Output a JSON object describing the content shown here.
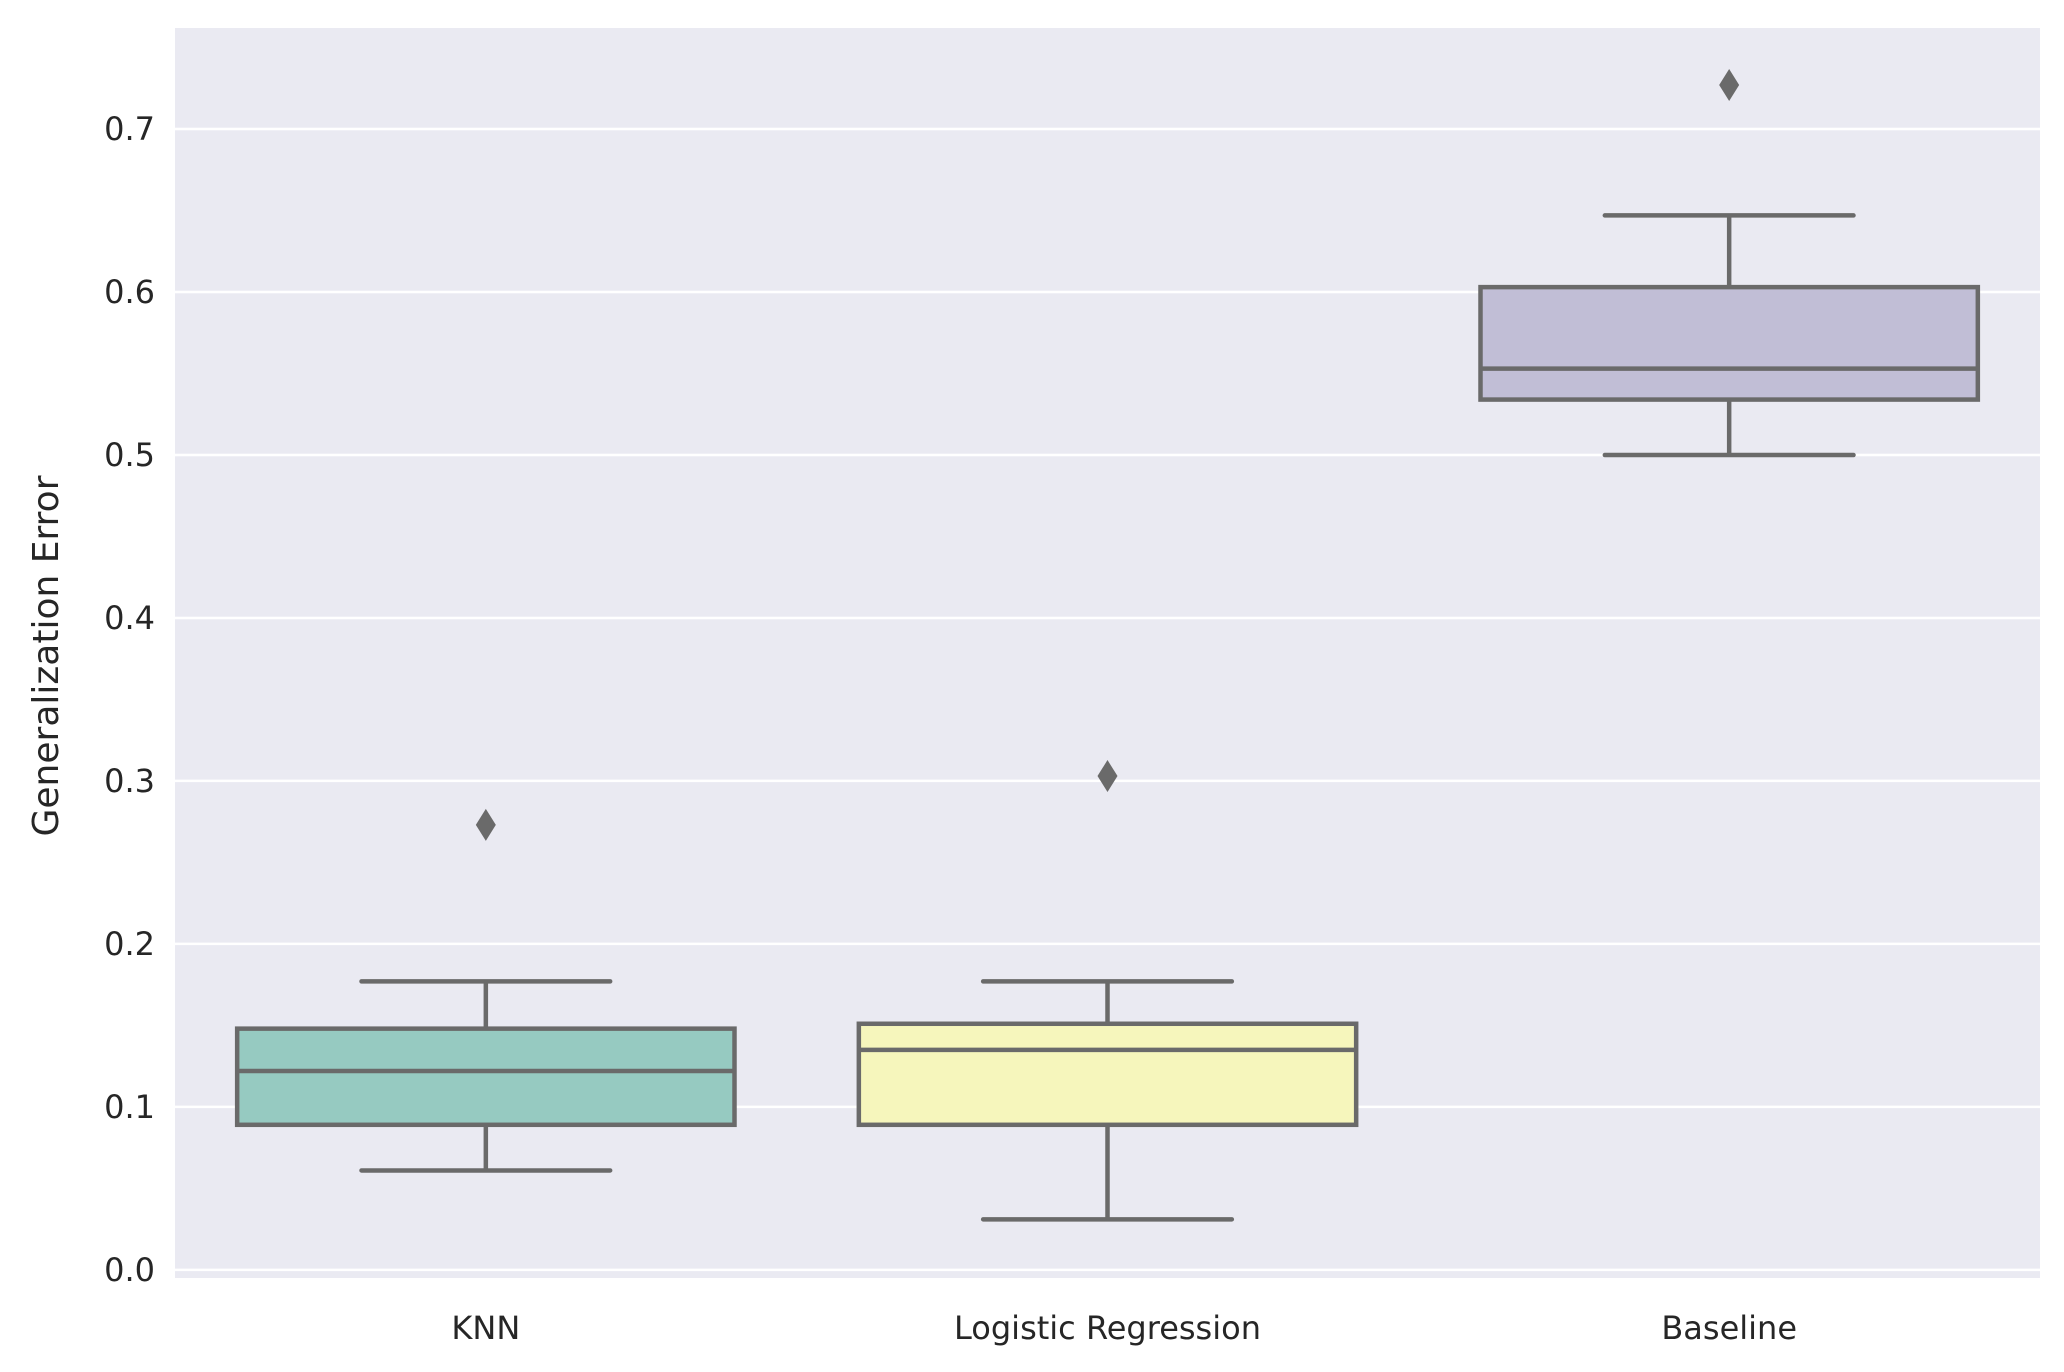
{
  "chart_data": {
    "type": "box",
    "title": "",
    "xlabel": "",
    "ylabel": "Generalization Error",
    "ylim": [
      -0.005,
      0.762
    ],
    "yticks": [
      0.0,
      0.1,
      0.2,
      0.3,
      0.4,
      0.5,
      0.6,
      0.7
    ],
    "ytick_labels": [
      "0.0",
      "0.1",
      "0.2",
      "0.3",
      "0.4",
      "0.5",
      "0.6",
      "0.7"
    ],
    "grid": true,
    "background": "#eaeaf2",
    "line_color": "#6a6a6a",
    "categories": [
      "KNN",
      "Logistic Regression",
      "Baseline"
    ],
    "boxes": [
      {
        "category": "KNN",
        "color": "#96cac1",
        "whisker_low": 0.061,
        "q1": 0.089,
        "median": 0.122,
        "q3": 0.148,
        "whisker_high": 0.177,
        "outliers": [
          0.273
        ]
      },
      {
        "category": "Logistic Regression",
        "color": "#f6f6bc",
        "whisker_low": 0.031,
        "q1": 0.089,
        "median": 0.135,
        "q3": 0.151,
        "whisker_high": 0.177,
        "outliers": [
          0.303
        ]
      },
      {
        "category": "Baseline",
        "color": "#c1bed6",
        "whisker_low": 0.5,
        "q1": 0.534,
        "median": 0.553,
        "q3": 0.603,
        "whisker_high": 0.647,
        "outliers": [
          0.727
        ]
      }
    ]
  }
}
